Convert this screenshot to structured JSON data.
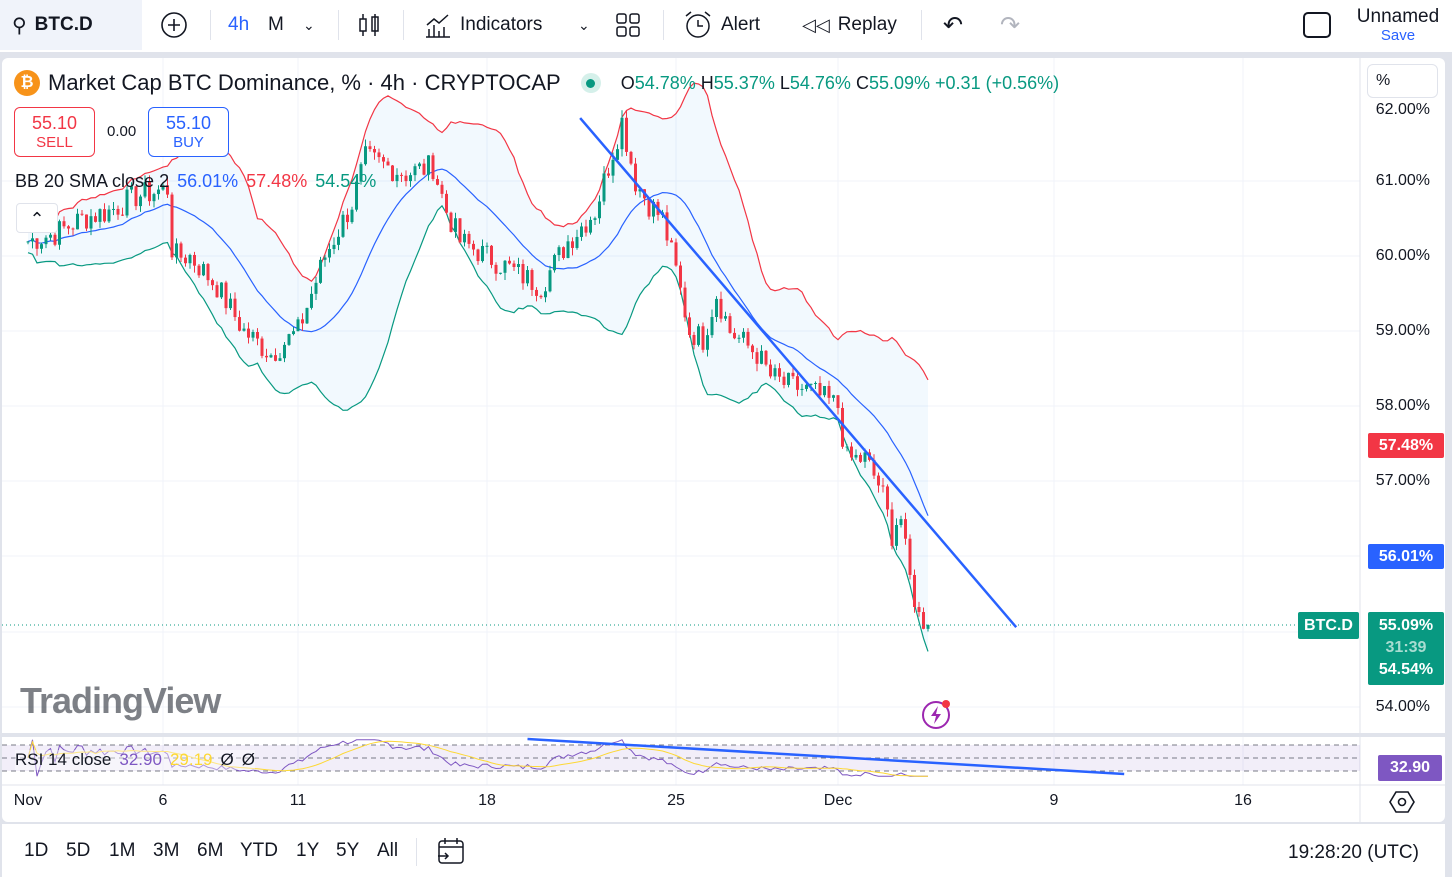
{
  "toolbar": {
    "symbol": "BTC.D",
    "interval": "4h",
    "interval_alt": "M",
    "indicators": "Indicators",
    "alert": "Alert",
    "replay": "Replay",
    "layout_name": "Unnamed",
    "save": "Save"
  },
  "legend": {
    "title": "Market Cap BTC Dominance, % · 4h · CRYPTOCAP",
    "o_label": "O",
    "o": "54.78%",
    "h_label": "H",
    "h": "55.37%",
    "l_label": "L",
    "l": "54.76%",
    "c_label": "C",
    "c": "55.09%",
    "change": "+0.31 (+0.56%)",
    "sell_price": "55.10",
    "sell_label": "SELL",
    "spread": "0.00",
    "buy_price": "55.10",
    "buy_label": "BUY",
    "bb_label": "BB 20 SMA close 2",
    "bb_basis": "56.01%",
    "bb_upper": "57.48%",
    "bb_lower": "54.54%",
    "rsi_label": "RSI 14 close",
    "rsi_value": "32.90",
    "rsi_ma": "29.19",
    "rsi_na1": "Ø",
    "rsi_na2": "Ø",
    "scale_mode": "%"
  },
  "price_axis": {
    "labels": [
      "62.00%",
      "61.00%",
      "60.00%",
      "59.00%",
      "58.00%",
      "57.00%",
      "54.00%"
    ],
    "badge_upper": "57.48%",
    "badge_basis": "56.01%",
    "badge_symbol": "BTC.D",
    "badge_last": "55.09%",
    "badge_countdown": "31:39",
    "badge_lower": "54.54%",
    "badge_rsi": "32.90"
  },
  "time_axis": {
    "labels": [
      "Nov",
      "6",
      "11",
      "18",
      "25",
      "Dec",
      "9",
      "16"
    ]
  },
  "bottom": {
    "ranges": [
      "1D",
      "5D",
      "1M",
      "3M",
      "6M",
      "YTD",
      "1Y",
      "5Y",
      "All"
    ],
    "clock": "19:28:20 (UTC)"
  },
  "watermark": "TradingView",
  "colors": {
    "up": "#089981",
    "down": "#f23645",
    "basis": "#2962ff",
    "upper": "#f23645",
    "lower": "#089981",
    "rsi": "#7e57c2",
    "rsi_ma": "#fdd835",
    "trend": "#2962ff"
  },
  "chart_data": {
    "type": "candlestick",
    "x_unit": "day of Nov (4h candles)",
    "y_unit": "%",
    "ylim": [
      53.6,
      62.2
    ],
    "anchors": [
      [
        1,
        60.2
      ],
      [
        2,
        60.3
      ],
      [
        3,
        60.5
      ],
      [
        4,
        60.6
      ],
      [
        5,
        60.8
      ],
      [
        6.2,
        60.9
      ],
      [
        6.35,
        60.0
      ],
      [
        7,
        60.0
      ],
      [
        8,
        59.6
      ],
      [
        9,
        59.0
      ],
      [
        10,
        58.7
      ],
      [
        11,
        59.0
      ],
      [
        12,
        60.0
      ],
      [
        13,
        60.7
      ],
      [
        13.5,
        61.3
      ],
      [
        15,
        61.1
      ],
      [
        16,
        61.2
      ],
      [
        16.5,
        60.6
      ],
      [
        17,
        60.2
      ],
      [
        18,
        60.0
      ],
      [
        19,
        59.8
      ],
      [
        20,
        59.6
      ],
      [
        21,
        60.2
      ],
      [
        22,
        60.6
      ],
      [
        22.5,
        61.2
      ],
      [
        23,
        61.8
      ],
      [
        23.5,
        61.0
      ],
      [
        24,
        60.7
      ],
      [
        24.5,
        60.5
      ],
      [
        25,
        59.8
      ],
      [
        25.5,
        59.0
      ],
      [
        26,
        58.9
      ],
      [
        26.5,
        59.5
      ],
      [
        27,
        59.0
      ],
      [
        28,
        58.7
      ],
      [
        28.5,
        58.4
      ],
      [
        29,
        58.3
      ],
      [
        30,
        58.2
      ],
      [
        31,
        58.0
      ],
      [
        31.3,
        57.3
      ],
      [
        32,
        57.3
      ],
      [
        32.6,
        56.9
      ],
      [
        33,
        56.3
      ],
      [
        33.3,
        56.6
      ],
      [
        33.6,
        55.8
      ],
      [
        34,
        55.2
      ],
      [
        34.4,
        55.09
      ]
    ],
    "trendline_price": [
      [
        21.45,
        61.84
      ],
      [
        37.6,
        55.06
      ]
    ],
    "trendline_rsi": [
      [
        19.5,
        70
      ],
      [
        41.6,
        30
      ]
    ],
    "bb": {
      "length": 20,
      "mult": 2
    },
    "rsi": {
      "length": 14,
      "ma_length": 14,
      "levels": [
        70,
        50,
        30
      ]
    }
  }
}
